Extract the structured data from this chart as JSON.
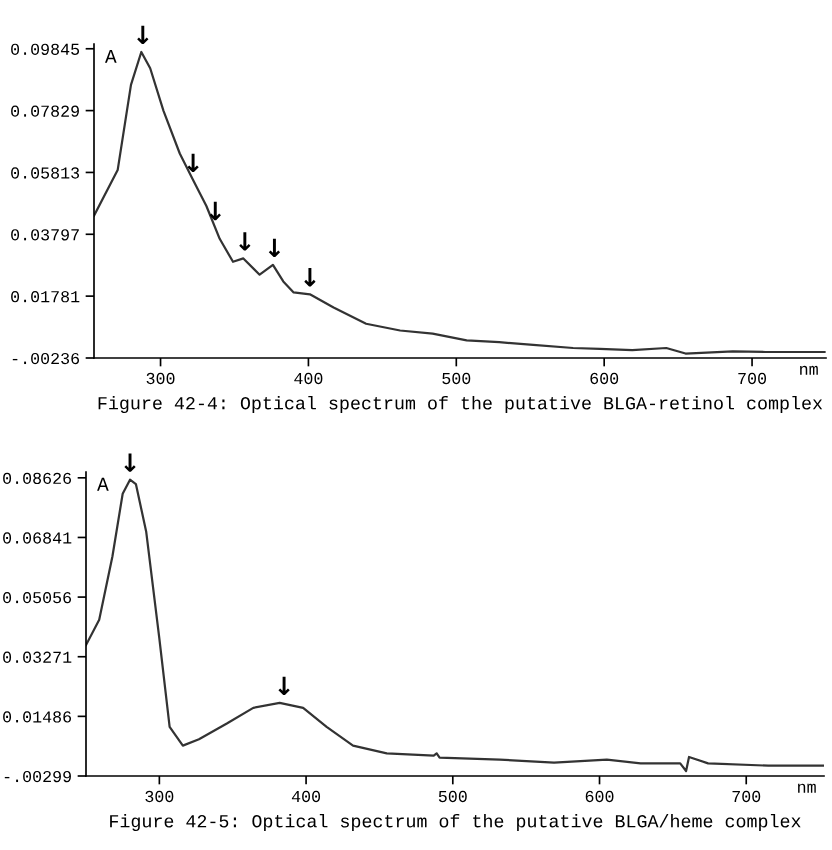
{
  "chart_data": [
    {
      "type": "line",
      "title": "Figure 42-4: Optical spectrum of the putative BLGA-retinol complex",
      "xlabel": "nm",
      "ylabel": "A",
      "xlim": [
        255,
        750
      ],
      "ylim": [
        -0.00236,
        0.1
      ],
      "xticks": [
        300,
        400,
        500,
        600,
        700
      ],
      "yticks": [
        {
          "value": -0.00236,
          "label": "-.00236"
        },
        0.01781,
        0.03797,
        0.05813,
        0.07829,
        0.09845
      ],
      "grid": false,
      "legend": false,
      "marker": "none",
      "line_style": "solid",
      "series": [
        {
          "color": "#333333",
          "x": [
            255,
            271,
            280,
            287,
            293,
            302,
            313,
            322,
            331,
            340,
            349,
            356,
            367,
            376,
            383,
            390,
            401,
            417,
            439,
            462,
            484,
            507,
            529,
            552,
            579,
            597,
            619,
            642,
            655,
            687,
            709,
            749
          ],
          "values": [
            0.044,
            0.0589,
            0.0867,
            0.0974,
            0.0921,
            0.0782,
            0.0643,
            0.0557,
            0.0472,
            0.0365,
            0.029,
            0.0301,
            0.0248,
            0.028,
            0.0226,
            0.019,
            0.0184,
            0.0141,
            0.0088,
            0.0066,
            0.0056,
            0.0034,
            0.0028,
            0.0019,
            0.0009,
            0.0006,
            0.0002,
            0.0009,
            -0.0009,
            -0.0002,
            -0.0004,
            -0.0004
          ]
        }
      ],
      "annotations": [
        {
          "text": "↓",
          "x": 288,
          "y": 0.0974
        },
        {
          "text": "↓",
          "x": 322,
          "y": 0.0557
        },
        {
          "text": "↓",
          "x": 337,
          "y": 0.04
        },
        {
          "text": "↓",
          "x": 357,
          "y": 0.0301
        },
        {
          "text": "↓",
          "x": 377,
          "y": 0.028
        },
        {
          "text": "↓",
          "x": 401,
          "y": 0.0184
        }
      ]
    },
    {
      "type": "line",
      "title": "Figure 42-5: Optical spectrum of the putative BLGA/heme complex",
      "xlabel": "nm",
      "ylabel": "A",
      "xlim": [
        250,
        753
      ],
      "ylim": [
        -0.00299,
        0.088
      ],
      "xticks": [
        300,
        400,
        500,
        600,
        700
      ],
      "yticks": [
        {
          "value": -0.00299,
          "label": "-.00299"
        },
        0.01486,
        0.03271,
        0.05056,
        0.06841,
        0.08626
      ],
      "grid": false,
      "legend": false,
      "marker": "none",
      "line_style": "solid",
      "series": [
        {
          "color": "#333333",
          "x": [
            250,
            259,
            268,
            275,
            280,
            284,
            291,
            300,
            307,
            316,
            327,
            346,
            364,
            382,
            398,
            414,
            432,
            455,
            487,
            489,
            491,
            532,
            569,
            605,
            628,
            655,
            659,
            661,
            674,
            715,
            753
          ],
          "values": [
            0.0362,
            0.0438,
            0.0627,
            0.0815,
            0.0857,
            0.0844,
            0.0702,
            0.0381,
            0.0117,
            0.0061,
            0.008,
            0.0127,
            0.0174,
            0.0189,
            0.0174,
            0.0117,
            0.0061,
            0.0038,
            0.0031,
            0.0038,
            0.0025,
            0.0019,
            0.001,
            0.0019,
            0.0008,
            0.0008,
            -0.0015,
            0.0027,
            0.0008,
            0.0001,
            0.0001
          ]
        }
      ],
      "annotations": [
        {
          "text": "↓",
          "x": 280,
          "y": 0.0857
        },
        {
          "text": "↓",
          "x": 385,
          "y": 0.0189
        }
      ]
    }
  ]
}
